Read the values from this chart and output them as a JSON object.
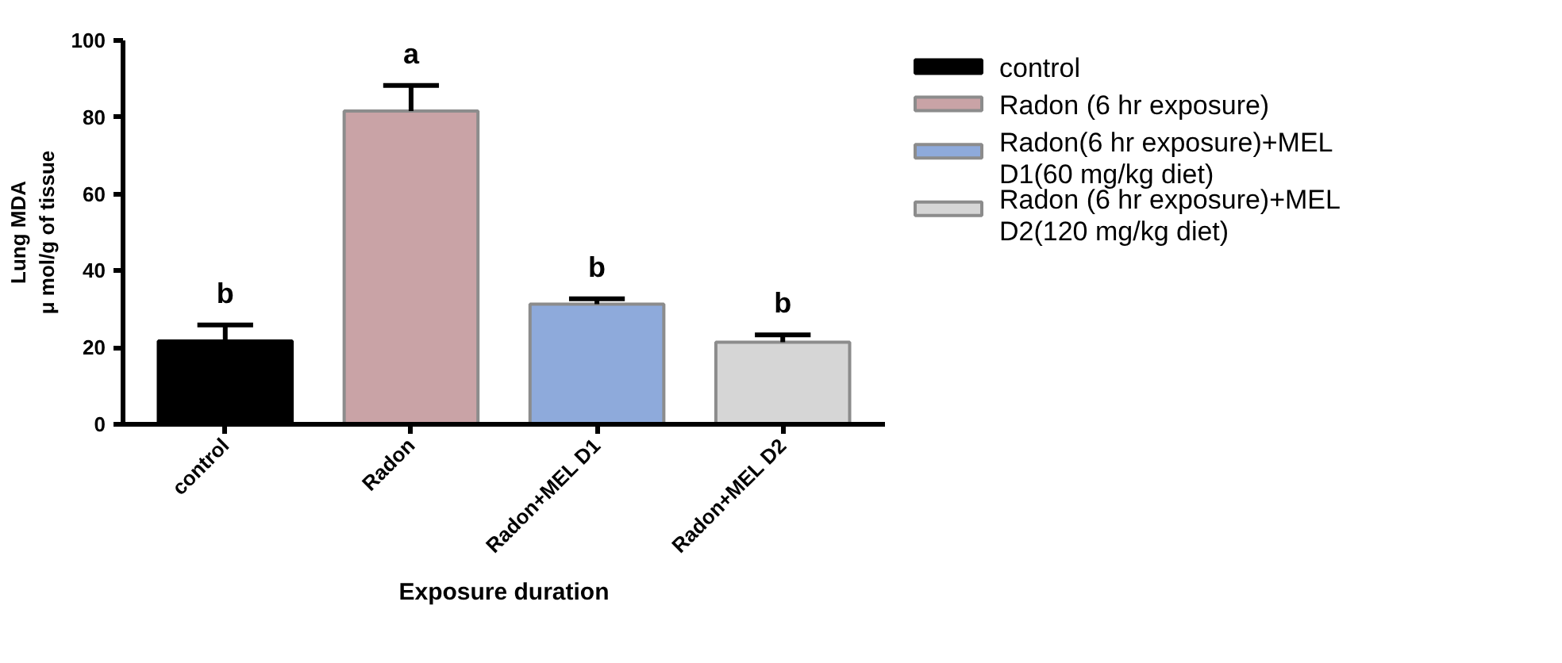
{
  "chart_data": {
    "type": "bar",
    "xlabel": "Exposure duration",
    "ylabel": "Lung MDA\nμ mol/g of tissue",
    "categories": [
      "control",
      "Radon",
      "Radon+MEL D1",
      "Radon+MEL D2"
    ],
    "series": [
      {
        "name": "control",
        "color": "#000000",
        "values": [
          21.7,
          null,
          null,
          null
        ],
        "errors": [
          [
            21.7,
            25.9
          ],
          null,
          null,
          null
        ]
      },
      {
        "name": "Radon (6 hr exposure)",
        "color": "#c9a3a6",
        "values": [
          null,
          81.6,
          null,
          null
        ],
        "errors": [
          null,
          [
            81.6,
            88.3
          ],
          null,
          null
        ]
      },
      {
        "name": "Radon(6 hr exposure)+MEL D1(60 mg/kg diet)",
        "color": "#8eaadb",
        "values": [
          null,
          null,
          31.3,
          null
        ],
        "errors": [
          null,
          null,
          [
            31.3,
            32.7
          ],
          null
        ]
      },
      {
        "name": "Radon (6 hr exposure)+MEL D2(120 mg/kg diet)",
        "color": "#d6d6d6",
        "values": [
          null,
          null,
          null,
          21.4
        ],
        "errors": [
          null,
          null,
          null,
          [
            21.4,
            23.3
          ]
        ]
      }
    ],
    "ylim": [
      0,
      100
    ],
    "yticks": [
      0,
      20,
      40,
      60,
      80,
      100
    ],
    "grid": false,
    "legend": "right",
    "annotations": [
      "b",
      "a",
      "b",
      "b"
    ]
  }
}
